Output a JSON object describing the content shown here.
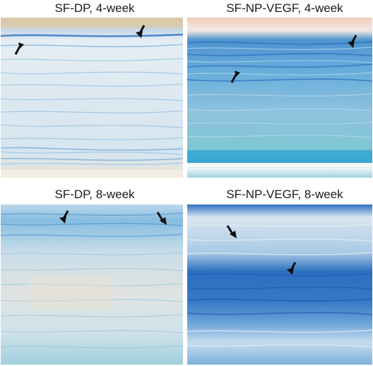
{
  "panels": [
    {
      "id": "tl",
      "title": "SF-DP, 4-week"
    },
    {
      "id": "tr",
      "title": "SF-NP-VEGF, 4-week"
    },
    {
      "id": "bl",
      "title": "SF-DP, 8-week"
    },
    {
      "id": "br",
      "title": "SF-NP-VEGF, 8-week"
    }
  ],
  "colors": {
    "stain_dark": "#2c6fc0",
    "stain_mid": "#5aa2d8",
    "stain_light": "#a7cde8",
    "stain_teal": "#7fc6d4",
    "background_pale": "#e9eef2",
    "tissue_cream": "#efe6d6",
    "arrow": "#111111"
  },
  "annotations": {
    "arrow_icon": "arrow-icon",
    "arrows_per_panel": [
      2,
      2,
      2,
      2
    ]
  }
}
